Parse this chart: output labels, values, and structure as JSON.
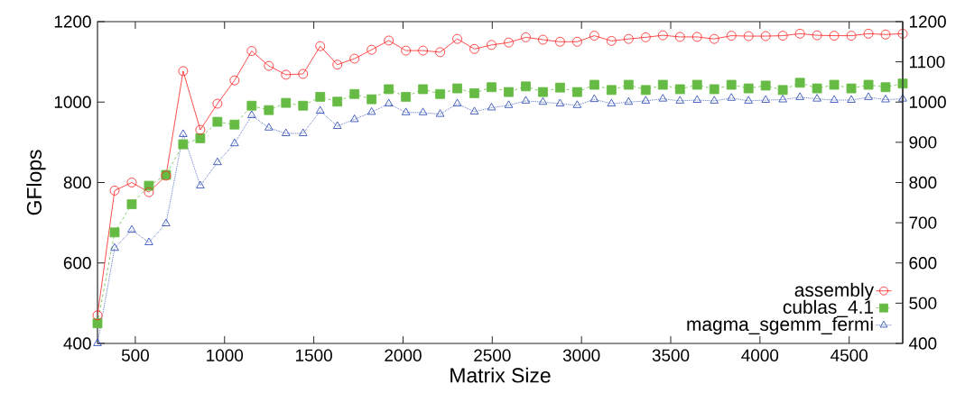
{
  "chart_data": {
    "type": "line",
    "xlabel": "Matrix Size",
    "ylabel": "GFlops",
    "x": [
      288,
      384,
      480,
      576,
      672,
      768,
      864,
      960,
      1056,
      1152,
      1248,
      1344,
      1440,
      1536,
      1632,
      1728,
      1824,
      1920,
      2016,
      2112,
      2208,
      2304,
      2400,
      2496,
      2592,
      2688,
      2784,
      2880,
      2976,
      3072,
      3168,
      3264,
      3360,
      3456,
      3552,
      3648,
      3744,
      3840,
      3936,
      4032,
      4128,
      4224,
      4320,
      4416,
      4512,
      4608,
      4704,
      4800
    ],
    "series": [
      {
        "name": "assembly",
        "color": "#ff2020",
        "marker": "circle",
        "line_style": "solid",
        "values": [
          470,
          780,
          800,
          776,
          817,
          1077,
          931,
          996,
          1054,
          1127,
          1090,
          1068,
          1070,
          1139,
          1093,
          1108,
          1130,
          1153,
          1128,
          1128,
          1124,
          1157,
          1132,
          1142,
          1148,
          1161,
          1155,
          1150,
          1150,
          1165,
          1152,
          1157,
          1161,
          1166,
          1162,
          1162,
          1157,
          1165,
          1164,
          1164,
          1165,
          1170,
          1166,
          1165,
          1165,
          1170,
          1168,
          1170
        ]
      },
      {
        "name": "cublas_4.1",
        "color": "#66bb44",
        "marker": "square",
        "line_style": "dashed",
        "values": [
          450,
          676,
          746,
          792,
          819,
          895,
          910,
          951,
          944,
          991,
          980,
          998,
          991,
          1013,
          1001,
          1020,
          1007,
          1032,
          1013,
          1032,
          1020,
          1034,
          1022,
          1037,
          1025,
          1039,
          1025,
          1036,
          1025,
          1043,
          1030,
          1043,
          1030,
          1043,
          1032,
          1043,
          1032,
          1043,
          1034,
          1041,
          1030,
          1048,
          1034,
          1043,
          1034,
          1043,
          1037,
          1046
        ]
      },
      {
        "name": "magma_sgemm_fermi",
        "color": "#2040b0",
        "marker": "triangle",
        "line_style": "dotted",
        "values": [
          400,
          637,
          682,
          651,
          698,
          920,
          792,
          850,
          897,
          967,
          936,
          922,
          922,
          978,
          940,
          957,
          975,
          996,
          974,
          974,
          970,
          996,
          976,
          986,
          992,
          1003,
          1000,
          996,
          992,
          1007,
          996,
          1000,
          1003,
          1008,
          1003,
          1005,
          1003,
          1010,
          1003,
          1005,
          1006,
          1012,
          1008,
          1005,
          1005,
          1012,
          1006,
          1008
        ]
      }
    ],
    "xlim": [
      288,
      4800
    ],
    "xticks": [
      500,
      1000,
      1500,
      2000,
      2500,
      3000,
      3500,
      4000,
      4500
    ],
    "ylim": [
      400,
      1200
    ],
    "yticks": [
      400,
      600,
      800,
      1000,
      1200
    ],
    "y2lim": [
      400,
      1200
    ],
    "y2ticks": [
      400,
      500,
      600,
      700,
      800,
      900,
      1000,
      1100,
      1200
    ],
    "grid": false,
    "legend": "bottom right"
  }
}
